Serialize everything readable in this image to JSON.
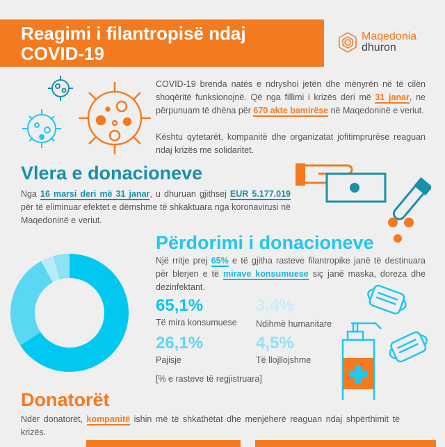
{
  "header": {
    "title_line1": "Reagimi i filantropisë ndaj",
    "title_line2": "COVID-19",
    "logo_line1": "Maqedonia",
    "logo_line2": "dhuron"
  },
  "intro": {
    "p1_a": "COVID-19 brenda natës e ndryshoi jetën dhe mënyrën në të cilën shoqëritë funksionojnë. Që nga fillimi i krizës deri më ",
    "p1_hl1": "31 janar",
    "p1_b": ", ne përpunuam të dhëna për ",
    "p1_hl2": "670 akte bamirëse",
    "p1_c": " në Maqedoninë e veriut.",
    "p2": "Kështu qytetarët, kompanitë dhe organizatat jofitimprurëse reaguan ndaj krizës me solidaritet."
  },
  "value": {
    "title": "Vlera e donacioneve",
    "a": "Nga ",
    "hl1": "16 marsi deri më 31 janar",
    "b": ", u dhuruan gjithsej ",
    "hl2": "EUR 5.177.019",
    "c": " për të eliminuar efektet e dëmshme të shkaktuara nga koronavirusi në Maqedoninë e veriut."
  },
  "usage": {
    "title": "Përdorimi i donacioneve",
    "a": "Një rritje prej ",
    "hl1": "65%",
    "b": " e të gjitha rasteve filantropike janë të destinuara për blerjen e të ",
    "hl2": "mirave konsumuese",
    "c": " siç janë maska, doreza dhe dezinfektant.",
    "note": "[% e rasteve të regjistruara]"
  },
  "donors": {
    "title": "Donatorët",
    "a": "Ndër donatorët, ",
    "hl": "kompanitë",
    "b": " ishin më të shkathëtat dhe menjëherë reaguan ndaj shpërthimit të krizës."
  },
  "chart_data": {
    "type": "pie",
    "title": "Përdorimi i donacioneve",
    "donut": true,
    "categories": [
      "Të mira konsumuese",
      "Pajisje",
      "Ndihmë humanitare",
      "Të llojllojshme"
    ],
    "values": [
      65.1,
      26.1,
      3.4,
      4.5
    ],
    "labels": [
      "65,1%",
      "26,1%",
      "3,4%",
      "4,5%"
    ],
    "colors": [
      "#00c8f0",
      "#5ad8f3",
      "#b8ecf7",
      "#8ee2f5"
    ]
  }
}
